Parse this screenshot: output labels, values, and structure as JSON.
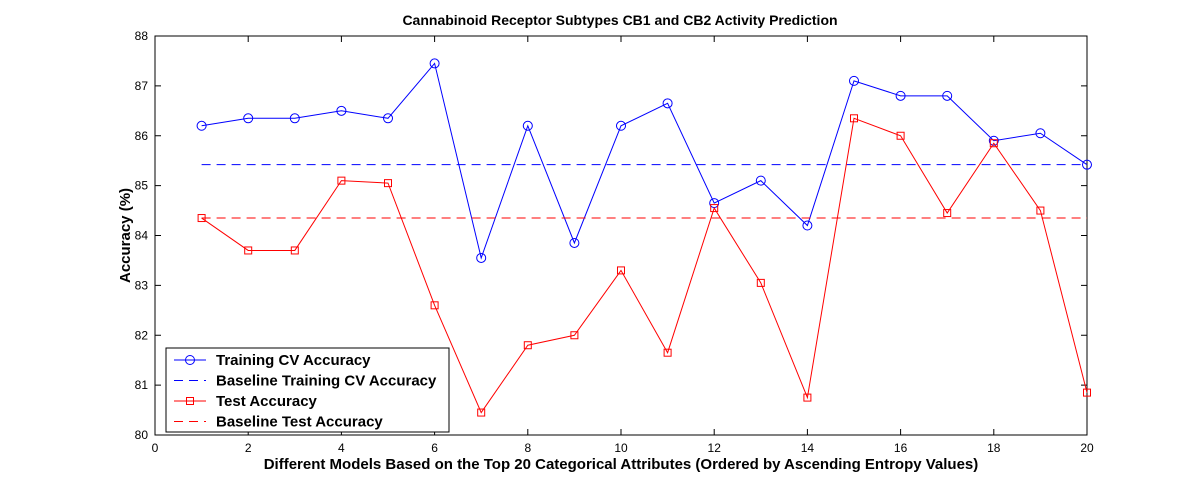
{
  "chart_data": {
    "type": "line",
    "title": "Cannabinoid Receptor Subtypes CB1 and CB2 Activity Prediction",
    "xlabel": "Different Models Based on the Top 20 Categorical Attributes (Ordered by Ascending Entropy Values)",
    "ylabel": "Accuracy (%)",
    "xlim": [
      0,
      20
    ],
    "ylim": [
      80,
      88
    ],
    "xticks": [
      0,
      2,
      4,
      6,
      8,
      10,
      12,
      14,
      16,
      18,
      20
    ],
    "yticks": [
      80,
      81,
      82,
      83,
      84,
      85,
      86,
      87,
      88
    ],
    "grid": false,
    "legend_position": "bottom-left",
    "x": [
      1,
      2,
      3,
      4,
      5,
      6,
      7,
      8,
      9,
      10,
      11,
      12,
      13,
      14,
      15,
      16,
      17,
      18,
      19,
      20
    ],
    "series": [
      {
        "name": "Training CV Accuracy",
        "color": "#0000ff",
        "line_style": "solid",
        "marker": "circle",
        "values": [
          86.2,
          86.35,
          86.35,
          86.5,
          86.35,
          87.45,
          83.55,
          86.2,
          83.85,
          86.2,
          86.65,
          84.65,
          85.1,
          84.2,
          87.1,
          86.8,
          86.8,
          85.9,
          86.05,
          85.42
        ]
      },
      {
        "name": "Baseline Training CV Accuracy",
        "color": "#0000ff",
        "line_style": "dashed",
        "marker": "none",
        "values": [
          85.42,
          85.42,
          85.42,
          85.42,
          85.42,
          85.42,
          85.42,
          85.42,
          85.42,
          85.42,
          85.42,
          85.42,
          85.42,
          85.42,
          85.42,
          85.42,
          85.42,
          85.42,
          85.42,
          85.42
        ]
      },
      {
        "name": "Test Accuracy",
        "color": "#ff0000",
        "line_style": "solid",
        "marker": "square",
        "values": [
          84.35,
          83.7,
          83.7,
          85.1,
          85.05,
          82.6,
          80.45,
          81.8,
          82.0,
          83.3,
          81.65,
          84.55,
          83.05,
          80.75,
          86.35,
          86.0,
          84.45,
          85.85,
          84.5,
          80.85
        ]
      },
      {
        "name": "Baseline Test Accuracy",
        "color": "#ff0000",
        "line_style": "dashed",
        "marker": "none",
        "values": [
          84.35,
          84.35,
          84.35,
          84.35,
          84.35,
          84.35,
          84.35,
          84.35,
          84.35,
          84.35,
          84.35,
          84.35,
          84.35,
          84.35,
          84.35,
          84.35,
          84.35,
          84.35,
          84.35,
          84.35
        ]
      }
    ]
  }
}
